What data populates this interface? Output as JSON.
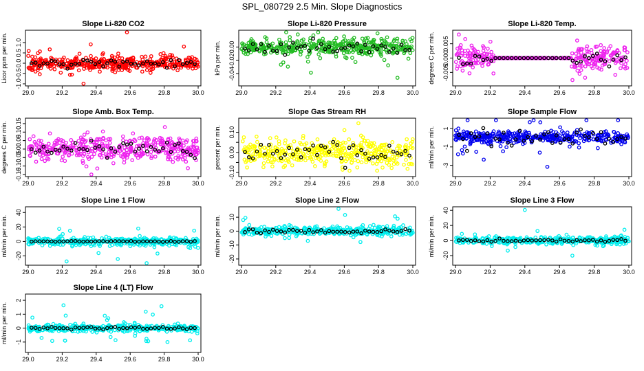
{
  "page": {
    "title": "SPL_080729  2.5 Min. Slope Diagnostics"
  },
  "chart_data": [
    {
      "type": "scatter",
      "title": "Slope Li-820 CO2",
      "ylabel": "Licor ppm per min.",
      "color": "#ff0000",
      "xlim": [
        29.0,
        30.0
      ],
      "ylim": [
        -1.0,
        1.5
      ],
      "yticks": [
        -1.0,
        -0.5,
        0.0,
        0.5,
        1.0
      ],
      "ytick_labels": [
        "-1.0",
        "-0.5",
        "0.0",
        "0.5",
        "1.0"
      ],
      "xticks": [
        29.0,
        29.2,
        29.4,
        29.6,
        29.8,
        30.0
      ],
      "xtick_labels": [
        "29.0",
        "29.2",
        "29.4",
        "29.6",
        "29.8",
        "30.0"
      ],
      "noise": 0.16,
      "outlier_scale": 0.6,
      "black_noise": 0.1,
      "flat": null,
      "seed": 11
    },
    {
      "type": "scatter",
      "title": "Slope Li-820 Pressure",
      "ylabel": "kPa per min.",
      "color": "#22bb22",
      "xlim": [
        29.0,
        30.0
      ],
      "ylim": [
        -0.055,
        0.022
      ],
      "yticks": [
        -0.04,
        -0.02,
        0.0
      ],
      "ytick_labels": [
        "-0.04",
        "-0.02",
        "0.00"
      ],
      "xticks": [
        29.0,
        29.2,
        29.4,
        29.6,
        29.8,
        30.0
      ],
      "xtick_labels": [
        "29.0",
        "29.2",
        "29.4",
        "29.6",
        "29.8",
        "30.0"
      ],
      "noise": 0.006,
      "outlier_scale": 0.02,
      "black_noise": 0.006,
      "flat": null,
      "seed": 23
    },
    {
      "type": "scatter",
      "title": "Slope Li-820 Temp.",
      "ylabel": "degrees C per min.",
      "color": "#ee22ee",
      "xlim": [
        29.0,
        30.0
      ],
      "ylim": [
        -0.009,
        0.009
      ],
      "yticks": [
        -0.005,
        0.0,
        0.005
      ],
      "ytick_labels": [
        "-0.005",
        "0.000",
        "0.005"
      ],
      "xticks": [
        29.0,
        29.2,
        29.4,
        29.6,
        29.8,
        30.0
      ],
      "xtick_labels": [
        "29.0",
        "29.2",
        "29.4",
        "29.6",
        "29.8",
        "30.0"
      ],
      "noise": 0.0022,
      "outlier_scale": 0.004,
      "black_noise": 0.001,
      "flat": [
        29.22,
        29.67
      ],
      "seed": 37
    },
    {
      "type": "scatter",
      "title": "Slope Amb. Box Temp.",
      "ylabel": "degrees C per min.",
      "color": "#ee22ee",
      "xlim": [
        29.0,
        30.0
      ],
      "ylim": [
        -0.15,
        0.17
      ],
      "yticks": [
        -0.15,
        -0.1,
        -0.05,
        0.0,
        0.05,
        0.1,
        0.15
      ],
      "ytick_labels": [
        "-0.15",
        "-0.10",
        "-0.05",
        "0.00",
        "0.05",
        "0.10",
        "0.15"
      ],
      "xticks": [
        29.0,
        29.2,
        29.4,
        29.6,
        29.8,
        30.0
      ],
      "xtick_labels": [
        "29.0",
        "29.2",
        "29.4",
        "29.6",
        "29.8",
        "30.0"
      ],
      "noise": 0.035,
      "outlier_scale": 0.06,
      "black_noise": 0.02,
      "flat": null,
      "seed": 41
    },
    {
      "type": "scatter",
      "title": "Slope Gas Stream RH",
      "ylabel": "percent per min.",
      "color": "#ffff00",
      "xlim": [
        29.0,
        30.0
      ],
      "ylim": [
        -0.11,
        0.16
      ],
      "yticks": [
        -0.1,
        -0.05,
        0.0,
        0.05,
        0.1
      ],
      "ytick_labels": [
        "-0.10",
        "",
        "0.00",
        "",
        "0.10"
      ],
      "xticks": [
        29.0,
        29.2,
        29.4,
        29.6,
        29.8,
        30.0
      ],
      "xtick_labels": [
        "29.0",
        "29.2",
        "29.4",
        "29.6",
        "29.8",
        "30.0"
      ],
      "noise": 0.035,
      "outlier_scale": 0.05,
      "black_noise": 0.03,
      "flat": null,
      "seed": 53
    },
    {
      "type": "scatter",
      "title": "Slope Sample Flow",
      "ylabel": "ml/min per min.",
      "color": "#0000ee",
      "xlim": [
        29.0,
        30.0
      ],
      "ylim": [
        -4.0,
        1.9
      ],
      "yticks": [
        -3,
        -1,
        1
      ],
      "ytick_labels": [
        "-3",
        "-1",
        "1"
      ],
      "xticks": [
        29.0,
        29.2,
        29.4,
        29.6,
        29.8,
        30.0
      ],
      "xtick_labels": [
        "29.0",
        "29.2",
        "29.4",
        "29.6",
        "29.8",
        "30.0"
      ],
      "noise": 0.3,
      "outlier_scale": 1.5,
      "black_noise": 0.5,
      "flat": null,
      "seed": 67
    },
    {
      "type": "scatter",
      "title": "Slope Line 1 Flow",
      "ylabel": "ml/min per min.",
      "color": "#00eeee",
      "xlim": [
        29.0,
        30.0
      ],
      "ylim": [
        -30,
        45
      ],
      "yticks": [
        -20,
        0,
        20,
        40
      ],
      "ytick_labels": [
        "-20",
        "0",
        "20",
        "40"
      ],
      "xticks": [
        29.0,
        29.2,
        29.4,
        29.6,
        29.8,
        30.0
      ],
      "xtick_labels": [
        "29.0",
        "29.2",
        "29.4",
        "29.6",
        "29.8",
        "30.0"
      ],
      "noise": 2.5,
      "outlier_scale": 15,
      "black_noise": 0.3,
      "flat": null,
      "seed": 71
    },
    {
      "type": "scatter",
      "title": "Slope Line 2 Flow",
      "ylabel": "ml/min per min.",
      "color": "#00eeee",
      "xlim": [
        29.0,
        30.0
      ],
      "ylim": [
        -23,
        16
      ],
      "yticks": [
        -20,
        -10,
        0,
        10
      ],
      "ytick_labels": [
        "-20",
        "-10",
        "0",
        "10"
      ],
      "xticks": [
        29.0,
        29.2,
        29.4,
        29.6,
        29.8,
        30.0
      ],
      "xtick_labels": [
        "29.0",
        "29.2",
        "29.4",
        "29.6",
        "29.8",
        "30.0"
      ],
      "noise": 1.5,
      "outlier_scale": 6,
      "black_noise": 0.8,
      "flat": null,
      "seed": 83
    },
    {
      "type": "scatter",
      "title": "Slope Line 3 Flow",
      "ylabel": "ml/min per min.",
      "color": "#00eeee",
      "xlim": [
        29.0,
        30.0
      ],
      "ylim": [
        -30,
        42
      ],
      "yticks": [
        -20,
        0,
        20,
        40
      ],
      "ytick_labels": [
        "-20",
        "0",
        "20",
        "40"
      ],
      "xticks": [
        29.0,
        29.2,
        29.4,
        29.6,
        29.8,
        30.0
      ],
      "xtick_labels": [
        "29.0",
        "29.2",
        "29.4",
        "29.6",
        "29.8",
        "30.0"
      ],
      "noise": 2.5,
      "outlier_scale": 12,
      "black_noise": 1.0,
      "flat": null,
      "seed": 97
    },
    {
      "type": "scatter",
      "title": "Slope Line 4 (LT) Flow",
      "ylabel": "ml/min per min.",
      "color": "#00eeee",
      "xlim": [
        29.0,
        30.0
      ],
      "ylim": [
        -1.6,
        2.3
      ],
      "yticks": [
        -1,
        0,
        1,
        2
      ],
      "ytick_labels": [
        "-1",
        "0",
        "1",
        "2"
      ],
      "xticks": [
        29.0,
        29.2,
        29.4,
        29.6,
        29.8,
        30.0
      ],
      "xtick_labels": [
        "29.0",
        "29.2",
        "29.4",
        "29.6",
        "29.8",
        "30.0"
      ],
      "noise": 0.12,
      "outlier_scale": 0.8,
      "black_noise": 0.05,
      "flat": null,
      "seed": 101
    }
  ]
}
